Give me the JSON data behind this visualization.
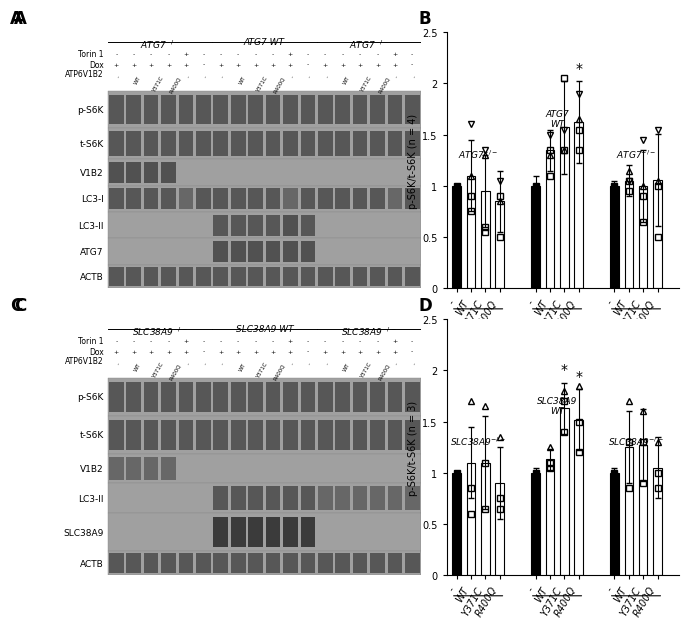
{
  "panel_B": {
    "title": "B",
    "ylabel": "p-S6K/t-S6K (n = 4)",
    "ylim": [
      0.0,
      2.5
    ],
    "yticks": [
      0.0,
      0.5,
      1.0,
      1.5,
      2.0,
      2.5
    ],
    "groups": [
      {
        "label": "ATG7⁻/⁻",
        "bars": [
          {
            "x_label": "-",
            "mean": 1.0,
            "err": 0.0
          },
          {
            "x_label": "WT",
            "mean": 1.1,
            "err": 0.35
          },
          {
            "x_label": "Y371C",
            "mean": 0.95,
            "err": 0.35
          },
          {
            "x_label": "R400Q",
            "mean": 0.85,
            "err": 0.3
          }
        ]
      },
      {
        "label": "ATG7\nWT",
        "bars": [
          {
            "x_label": "-",
            "mean": 1.0,
            "err": 0.1
          },
          {
            "x_label": "WT",
            "mean": 1.35,
            "err": 0.2
          },
          {
            "x_label": "Y371C",
            "mean": 1.57,
            "err": 0.45
          },
          {
            "x_label": "R400Q",
            "mean": 1.62,
            "err": 0.4
          }
        ]
      },
      {
        "label": "ATG7⁻/⁻",
        "bars": [
          {
            "x_label": "-",
            "mean": 1.0,
            "err": 0.05
          },
          {
            "x_label": "WT",
            "mean": 1.05,
            "err": 0.15
          },
          {
            "x_label": "Y371C",
            "mean": 1.0,
            "err": 0.35
          },
          {
            "x_label": "R400Q",
            "mean": 1.06,
            "err": 0.45
          }
        ]
      }
    ],
    "star_positions": [
      {
        "group": 1,
        "bar": 3
      }
    ],
    "bar_color": "white",
    "bar_edgecolor": "black",
    "first_bar_color": "black",
    "data_points_B": {
      "group0": {
        "bar0": [
          1.0
        ],
        "bar1": [
          0.9,
          0.75,
          1.1,
          1.6
        ],
        "bar2": [
          0.6,
          0.55,
          1.3,
          1.35
        ],
        "bar3": [
          0.5,
          0.9,
          0.85,
          1.05
        ]
      },
      "group1": {
        "bar0": [
          1.0
        ],
        "bar1": [
          1.1,
          1.35,
          1.3,
          1.5
        ],
        "bar2": [
          1.35,
          2.05,
          1.35,
          1.55
        ],
        "bar3": [
          1.55,
          1.35,
          1.65,
          1.9
        ]
      },
      "group2": {
        "bar0": [
          1.0
        ],
        "bar1": [
          0.95,
          1.05,
          1.15,
          1.05
        ],
        "bar2": [
          0.65,
          0.9,
          1.0,
          1.45
        ],
        "bar3": [
          0.5,
          1.0,
          1.05,
          1.55
        ]
      }
    }
  },
  "panel_D": {
    "title": "D",
    "ylabel": "p-S6K/t-S6K (n = 3)",
    "ylim": [
      0.0,
      2.5
    ],
    "yticks": [
      0.0,
      0.5,
      1.0,
      1.5,
      2.0,
      2.5
    ],
    "groups": [
      {
        "label": "SLC38A9⁻/⁻",
        "bars": [
          {
            "x_label": "-",
            "mean": 1.0,
            "err": 0.0
          },
          {
            "x_label": "WT",
            "mean": 1.1,
            "err": 0.35
          },
          {
            "x_label": "Y371C",
            "mean": 1.1,
            "err": 0.45
          },
          {
            "x_label": "R400Q",
            "mean": 0.9,
            "err": 0.35
          }
        ]
      },
      {
        "label": "SLC38A9\nWT",
        "bars": [
          {
            "x_label": "-",
            "mean": 1.0,
            "err": 0.05
          },
          {
            "x_label": "WT",
            "mean": 1.13,
            "err": 0.1
          },
          {
            "x_label": "Y371C",
            "mean": 1.63,
            "err": 0.25
          },
          {
            "x_label": "R400Q",
            "mean": 1.52,
            "err": 0.3
          }
        ]
      },
      {
        "label": "SLC38A9⁻/⁻",
        "bars": [
          {
            "x_label": "-",
            "mean": 1.0,
            "err": 0.05
          },
          {
            "x_label": "WT",
            "mean": 1.25,
            "err": 0.35
          },
          {
            "x_label": "Y371C",
            "mean": 1.27,
            "err": 0.35
          },
          {
            "x_label": "R400Q",
            "mean": 1.05,
            "err": 0.3
          }
        ]
      }
    ],
    "star_positions": [
      {
        "group": 1,
        "bar": 2
      },
      {
        "group": 1,
        "bar": 3
      }
    ],
    "bar_color": "white",
    "bar_edgecolor": "black",
    "first_bar_color": "black",
    "data_points_D": {
      "group0": {
        "bar0": [
          1.0
        ],
        "bar1": [
          0.6,
          0.85,
          1.7
        ],
        "bar2": [
          0.65,
          1.1,
          1.65
        ],
        "bar3": [
          0.65,
          0.75,
          1.35
        ]
      },
      "group1": {
        "bar0": [
          1.0
        ],
        "bar1": [
          1.05,
          1.1,
          1.25
        ],
        "bar2": [
          1.4,
          1.7,
          1.8
        ],
        "bar3": [
          1.2,
          1.5,
          1.85
        ]
      },
      "group2": {
        "bar0": [
          1.0
        ],
        "bar1": [
          0.85,
          1.3,
          1.7
        ],
        "bar2": [
          0.9,
          1.3,
          1.6
        ],
        "bar3": [
          0.85,
          1.0,
          1.3
        ]
      }
    }
  },
  "western_blot_A": {
    "title": "A",
    "rows": [
      "p-S6K",
      "t-S6K",
      "V1B2",
      "LC3-I",
      "LC3-II",
      "ATG7",
      "ACTB"
    ],
    "groups": [
      "ATG7⁻/⁻",
      "ATG7 WT",
      "ATG7⁻/⁻"
    ],
    "background": "#b0b0b0"
  },
  "western_blot_C": {
    "title": "C",
    "rows": [
      "p-S6K",
      "t-S6K",
      "V1B2",
      "LC3-II",
      "SLC38A9",
      "ACTB"
    ],
    "groups": [
      "SLC38A9⁻/⁻",
      "SLC38A9 WT",
      "SLC38A9⁻/⁻"
    ],
    "background": "#b0b0b0"
  }
}
